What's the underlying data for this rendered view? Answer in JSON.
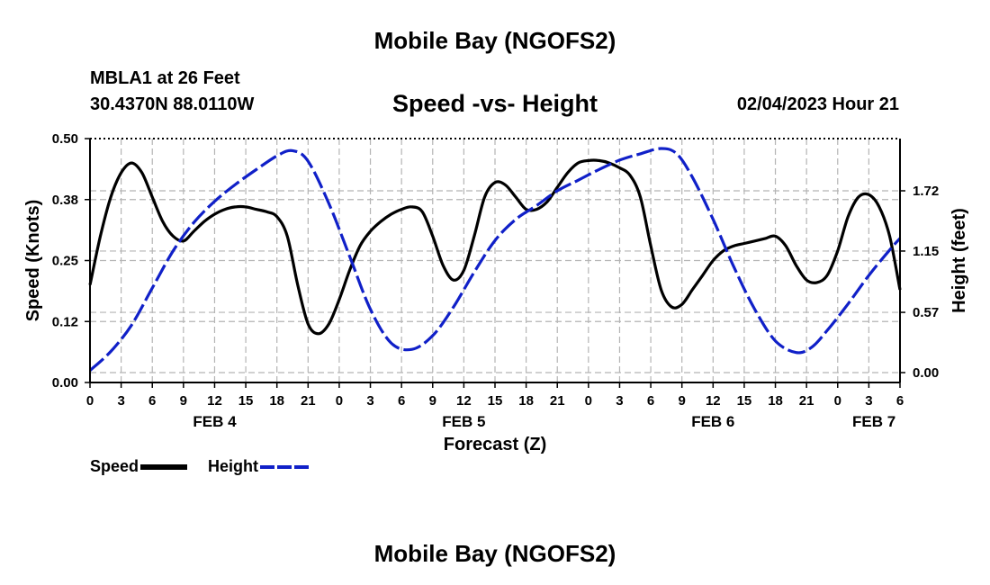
{
  "header": {
    "title": "Mobile Bay (NGOFS2)",
    "station": "MBLA1 at 26 Feet",
    "coordinates": "30.4370N 88.0110W",
    "datetime": "02/04/2023 Hour 21"
  },
  "footer": {
    "title": "Mobile Bay (NGOFS2)"
  },
  "colors": {
    "speed": "#000000",
    "height": "#1020c8",
    "grid": "#b4b4b4"
  },
  "chart_data": {
    "type": "line",
    "title": "Speed -vs- Height",
    "xlabel": "Forecast (Z)",
    "ylabel": "Speed (Knots)",
    "ylabel_right": "Height (feet)",
    "x_unit": "hours from 00Z FEB 4",
    "xlim": [
      0,
      78
    ],
    "ylim": [
      0,
      0.5
    ],
    "ylim_right": [
      -0.1,
      2.2
    ],
    "x_ticks": [
      0,
      3,
      6,
      9,
      12,
      15,
      18,
      21,
      24,
      27,
      30,
      33,
      36,
      39,
      42,
      45,
      48,
      51,
      54,
      57,
      60,
      63,
      66,
      69,
      72,
      75,
      78
    ],
    "x_tick_labels": [
      "0",
      "3",
      "6",
      "9",
      "12",
      "15",
      "18",
      "21",
      "0",
      "3",
      "6",
      "9",
      "12",
      "15",
      "18",
      "21",
      "0",
      "3",
      "6",
      "9",
      "12",
      "15",
      "18",
      "21",
      "0",
      "3",
      "6"
    ],
    "date_labels": [
      {
        "x": 12,
        "label": "FEB 4"
      },
      {
        "x": 36,
        "label": "FEB 5"
      },
      {
        "x": 60,
        "label": "FEB 6"
      },
      {
        "x": 75.5,
        "label": "FEB 7"
      }
    ],
    "y_ticks": [
      0,
      0.125,
      0.25,
      0.375,
      0.5
    ],
    "y_tick_labels": [
      "0.00",
      "0.12",
      "0.25",
      "0.38",
      "0.50"
    ],
    "y_ticks_right": [
      0,
      0.57,
      1.15,
      1.72
    ],
    "y_tick_labels_right": [
      "0.00",
      "0.57",
      "1.15",
      "1.72"
    ],
    "grid": true,
    "legend_position": "bottom-left",
    "series": [
      {
        "name": "Speed",
        "axis": "left",
        "style": "solid",
        "x": [
          0,
          1,
          2,
          3,
          4,
          5,
          6,
          7,
          8,
          9,
          10,
          11,
          12,
          13,
          14,
          15,
          16,
          17,
          18,
          19,
          20,
          21,
          22,
          23,
          24,
          25,
          26,
          27,
          28,
          29,
          30,
          31,
          32,
          33,
          34,
          35,
          36,
          37,
          38,
          39,
          40,
          41,
          42,
          43,
          44,
          45,
          46,
          47,
          48,
          49,
          50,
          51,
          52,
          53,
          54,
          55,
          56,
          57,
          58,
          59,
          60,
          61,
          62,
          63,
          64,
          65,
          66,
          67,
          68,
          69,
          70,
          71,
          72,
          73,
          74,
          75,
          76,
          77,
          78
        ],
        "values": [
          0.2,
          0.3,
          0.38,
          0.43,
          0.45,
          0.43,
          0.38,
          0.33,
          0.3,
          0.29,
          0.31,
          0.33,
          0.345,
          0.355,
          0.36,
          0.36,
          0.355,
          0.35,
          0.34,
          0.3,
          0.2,
          0.12,
          0.1,
          0.12,
          0.17,
          0.23,
          0.28,
          0.31,
          0.33,
          0.345,
          0.355,
          0.36,
          0.35,
          0.3,
          0.24,
          0.21,
          0.23,
          0.3,
          0.38,
          0.41,
          0.405,
          0.38,
          0.355,
          0.355,
          0.37,
          0.4,
          0.43,
          0.45,
          0.455,
          0.455,
          0.45,
          0.44,
          0.425,
          0.38,
          0.28,
          0.19,
          0.155,
          0.16,
          0.19,
          0.22,
          0.25,
          0.27,
          0.28,
          0.285,
          0.29,
          0.295,
          0.3,
          0.28,
          0.24,
          0.21,
          0.205,
          0.22,
          0.27,
          0.34,
          0.38,
          0.385,
          0.36,
          0.3,
          0.19
        ]
      },
      {
        "name": "Height",
        "axis": "right",
        "style": "dashed",
        "x": [
          0,
          2,
          4,
          6,
          8,
          10,
          12,
          14,
          16,
          18,
          19.5,
          21,
          23,
          25,
          27,
          29,
          31,
          33,
          35,
          37,
          39,
          41,
          43,
          45,
          47,
          49,
          51,
          53,
          55,
          56.5,
          58,
          60,
          62,
          64,
          66,
          68,
          69.5,
          71,
          73,
          75,
          77,
          78
        ],
        "values": [
          0.02,
          0.2,
          0.45,
          0.8,
          1.15,
          1.42,
          1.62,
          1.78,
          1.92,
          2.05,
          2.1,
          2.0,
          1.6,
          1.1,
          0.6,
          0.28,
          0.22,
          0.35,
          0.62,
          0.95,
          1.25,
          1.45,
          1.58,
          1.72,
          1.82,
          1.92,
          2.01,
          2.07,
          2.12,
          2.07,
          1.85,
          1.45,
          1.0,
          0.6,
          0.3,
          0.19,
          0.24,
          0.4,
          0.65,
          0.92,
          1.16,
          1.27
        ]
      }
    ]
  },
  "legend": {
    "items": [
      {
        "label": "Speed"
      },
      {
        "label": "Height"
      }
    ]
  }
}
